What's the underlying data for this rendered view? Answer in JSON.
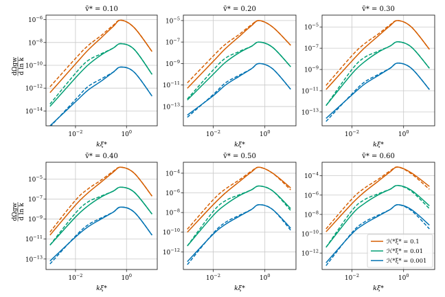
{
  "figure": {
    "ylabel_num": "dΩgw",
    "ylabel_den": "d ln k",
    "xlabel": "kξ*",
    "colors": {
      "0.1": "#d55e00",
      "0.01": "#009e73",
      "0.001": "#0072b2"
    },
    "line_styles": {
      "solid": "model",
      "dashed": "fit"
    },
    "legend": {
      "placement": "lower-right",
      "panel": 5,
      "entries": [
        {
          "label": "ℋ*ξ* = 0.1",
          "color": "#d55e00"
        },
        {
          "label": "ℋ*ξ* = 0.01",
          "color": "#009e73"
        },
        {
          "label": "ℋ*ξ* = 0.001",
          "color": "#0072b2"
        }
      ]
    }
  },
  "chart_data": [
    {
      "type": "line",
      "title": "v̄* = 0.10",
      "xscale": "log",
      "yscale": "log",
      "grid": true,
      "xlim": [
        0.0007,
        16
      ],
      "ylim": [
        5e-16,
        2.5e-06
      ],
      "xticks": [
        0.01,
        1.0
      ],
      "yticks": [
        1e-14,
        1e-12,
        1e-10,
        1e-08,
        1e-06
      ],
      "x": [
        0.001,
        0.01,
        0.03,
        0.1,
        0.3,
        0.6,
        2,
        10
      ],
      "series": [
        {
          "color": "#d55e00",
          "style": "solid",
          "values": [
            4e-13,
            1.3e-10,
            2e-09,
            2.5e-08,
            2.5e-07,
            8.9e-07,
            2e-07,
            1.6e-09
          ]
        },
        {
          "color": "#d55e00",
          "style": "dashed",
          "values": [
            1.3e-12,
            4e-10,
            5e-09,
            4e-08,
            3.2e-07,
            8.9e-07,
            2e-07,
            1.6e-09
          ]
        },
        {
          "color": "#009e73",
          "style": "solid",
          "values": [
            2.5e-14,
            7.9e-12,
            1e-10,
            7.9e-10,
            3.2e-09,
            7.9e-09,
            2.5e-09,
            1.6e-11
          ]
        },
        {
          "color": "#009e73",
          "style": "dashed",
          "values": [
            4e-14,
            2e-11,
            2.5e-10,
            1e-09,
            3.2e-09,
            7.9e-09,
            2.5e-09,
            1.6e-11
          ]
        },
        {
          "color": "#0072b2",
          "style": "solid",
          "values": [
            5e-16,
            6.3e-14,
            6.3e-13,
            4e-12,
            2.5e-11,
            7.1e-11,
            2.5e-11,
            2e-13
          ]
        },
        {
          "color": "#0072b2",
          "style": "dashed",
          "values": [
            4e-16,
            1e-13,
            1.3e-12,
            6.3e-12,
            2.5e-11,
            7.1e-11,
            2.5e-11,
            2e-13
          ]
        }
      ]
    },
    {
      "type": "line",
      "title": "v̄* = 0.20",
      "xscale": "log",
      "yscale": "log",
      "grid": true,
      "xlim": [
        0.0007,
        16
      ],
      "ylim": [
        1.6e-15,
        3.2e-05
      ],
      "xticks": [
        0.01,
        1.0
      ],
      "yticks": [
        1e-13,
        1e-11,
        1e-09,
        1e-07,
        1e-05
      ],
      "x": [
        0.001,
        0.01,
        0.03,
        0.1,
        0.3,
        0.6,
        2,
        10
      ],
      "series": [
        {
          "color": "#d55e00",
          "style": "solid",
          "values": [
            5e-12,
            1.6e-09,
            2.5e-08,
            3.2e-07,
            3.2e-06,
            1e-05,
            2.5e-06,
            5e-08
          ]
        },
        {
          "color": "#d55e00",
          "style": "dashed",
          "values": [
            1.6e-11,
            5e-09,
            6.3e-08,
            5e-07,
            4e-06,
            1e-05,
            2.5e-06,
            5e-08
          ]
        },
        {
          "color": "#009e73",
          "style": "solid",
          "values": [
            4e-13,
            1e-10,
            1.3e-09,
            1e-08,
            4e-08,
            1e-07,
            3.2e-08,
            5e-10
          ]
        },
        {
          "color": "#009e73",
          "style": "dashed",
          "values": [
            5e-13,
            2.5e-10,
            3.2e-09,
            1.3e-08,
            4e-08,
            1e-07,
            3.2e-08,
            5e-10
          ]
        },
        {
          "color": "#0072b2",
          "style": "solid",
          "values": [
            1.6e-14,
            1e-12,
            1e-11,
            6.3e-11,
            3.2e-10,
            1e-09,
            3.2e-10,
            4e-12
          ]
        },
        {
          "color": "#0072b2",
          "style": "dashed",
          "values": [
            1e-14,
            1.3e-12,
            1.6e-11,
            7.9e-11,
            3.2e-10,
            1e-09,
            3.2e-10,
            4e-12
          ]
        }
      ]
    },
    {
      "type": "line",
      "title": "v̄* = 0.30",
      "xscale": "log",
      "yscale": "log",
      "grid": true,
      "xlim": [
        0.0007,
        16
      ],
      "ylim": [
        5e-15,
        0.00013
      ],
      "xticks": [
        0.01,
        1.0
      ],
      "yticks": [
        1e-13,
        1e-11,
        1e-09,
        1e-07,
        1e-05
      ],
      "x": [
        0.001,
        0.01,
        0.03,
        0.1,
        0.3,
        0.6,
        2,
        10
      ],
      "series": [
        {
          "color": "#d55e00",
          "style": "solid",
          "values": [
            1.3e-11,
            6.3e-09,
            1e-07,
            1.3e-06,
            1.3e-05,
            4e-05,
            1e-05,
            7.9e-08
          ]
        },
        {
          "color": "#d55e00",
          "style": "dashed",
          "values": [
            3.2e-11,
            2e-08,
            2.5e-07,
            2e-06,
            1.6e-05,
            4e-05,
            1e-05,
            7.9e-08
          ]
        },
        {
          "color": "#009e73",
          "style": "solid",
          "values": [
            4e-13,
            4e-10,
            5e-09,
            4e-08,
            1.6e-07,
            4e-07,
            1.3e-07,
            1.3e-09
          ]
        },
        {
          "color": "#009e73",
          "style": "dashed",
          "values": [
            4e-13,
            1e-09,
            1.3e-08,
            5e-08,
            1.6e-07,
            4e-07,
            1.3e-07,
            1.3e-09
          ]
        },
        {
          "color": "#0072b2",
          "style": "solid",
          "values": [
            2.5e-14,
            4e-12,
            4e-11,
            2.5e-10,
            1.3e-09,
            4e-09,
            1.3e-09,
            1.3e-11
          ]
        },
        {
          "color": "#0072b2",
          "style": "dashed",
          "values": [
            1.3e-14,
            5e-12,
            6.3e-11,
            3.2e-10,
            1.3e-09,
            4e-09,
            1.3e-09,
            1.3e-11
          ]
        }
      ]
    },
    {
      "type": "line",
      "title": "v̄* = 0.40",
      "xscale": "log",
      "yscale": "log",
      "grid": true,
      "xlim": [
        0.0007,
        16
      ],
      "ylim": [
        8.9e-15,
        0.0005
      ],
      "xticks": [
        0.01,
        1.0
      ],
      "yticks": [
        1e-13,
        1e-11,
        1e-09,
        1e-07,
        1e-05
      ],
      "x": [
        0.001,
        0.01,
        0.03,
        0.1,
        0.3,
        0.6,
        2,
        10
      ],
      "series": [
        {
          "color": "#d55e00",
          "style": "solid",
          "values": [
            2.5e-11,
            2.5e-08,
            4e-07,
            5e-06,
            5e-05,
            0.00016,
            4e-05,
            2e-07
          ]
        },
        {
          "color": "#d55e00",
          "style": "dashed",
          "values": [
            5e-11,
            7.9e-08,
            1e-06,
            7.9e-06,
            6.3e-05,
            0.00016,
            4e-05,
            2e-07
          ]
        },
        {
          "color": "#009e73",
          "style": "solid",
          "values": [
            2.5e-12,
            1.6e-09,
            2e-08,
            1.6e-07,
            6.3e-07,
            1.6e-06,
            5e-07,
            3.2e-09
          ]
        },
        {
          "color": "#009e73",
          "style": "dashed",
          "values": [
            2.5e-12,
            4e-09,
            5e-08,
            2e-07,
            6.3e-07,
            1.6e-06,
            5e-07,
            3.2e-09
          ]
        },
        {
          "color": "#0072b2",
          "style": "solid",
          "values": [
            6.3e-14,
            1.6e-11,
            1.6e-10,
            1e-09,
            5e-09,
            1.6e-08,
            5e-09,
            2.5e-11
          ]
        },
        {
          "color": "#0072b2",
          "style": "dashed",
          "values": [
            3.2e-14,
            2e-11,
            2.5e-10,
            1.3e-09,
            5e-09,
            1.6e-08,
            5e-09,
            2.5e-11
          ]
        }
      ]
    },
    {
      "type": "line",
      "title": "v̄* = 0.50",
      "xscale": "log",
      "yscale": "log",
      "grid": true,
      "xlim": [
        0.0007,
        16
      ],
      "ylim": [
        1.6e-14,
        0.0013
      ],
      "xticks": [
        0.01,
        1.0
      ],
      "yticks": [
        1e-12,
        1e-10,
        1e-08,
        1e-06,
        0.0001
      ],
      "x": [
        0.001,
        0.01,
        0.03,
        0.1,
        0.3,
        0.6,
        2,
        10
      ],
      "series": [
        {
          "color": "#d55e00",
          "style": "solid",
          "values": [
            1e-10,
            6.3e-08,
            1e-06,
            1.3e-05,
            0.00013,
            0.0004,
            0.0001,
            3.2e-06
          ]
        },
        {
          "color": "#d55e00",
          "style": "dashed",
          "values": [
            2e-10,
            2e-07,
            2.5e-06,
            2e-05,
            0.00016,
            0.0004,
            0.0001,
            2e-06
          ]
        },
        {
          "color": "#009e73",
          "style": "solid",
          "values": [
            4e-12,
            5e-09,
            6.3e-08,
            5e-07,
            2e-06,
            5e-06,
            1.6e-06,
            2.5e-08
          ]
        },
        {
          "color": "#009e73",
          "style": "dashed",
          "values": [
            4e-12,
            1.3e-08,
            1.6e-07,
            6.3e-07,
            2e-06,
            5e-06,
            1.6e-06,
            1.6e-08
          ]
        },
        {
          "color": "#0072b2",
          "style": "solid",
          "values": [
            1e-13,
            6.3e-11,
            6.3e-10,
            4e-09,
            2e-08,
            6.3e-08,
            2e-08,
            2.5e-10
          ]
        },
        {
          "color": "#0072b2",
          "style": "dashed",
          "values": [
            5e-14,
            7.9e-11,
            1e-09,
            5e-09,
            2e-08,
            6.3e-08,
            2e-08,
            1.6e-10
          ]
        }
      ]
    },
    {
      "type": "line",
      "title": "v̄* = 0.60",
      "xscale": "log",
      "yscale": "log",
      "grid": true,
      "xlim": [
        0.0007,
        16
      ],
      "ylim": [
        2e-14,
        0.0025
      ],
      "xticks": [
        0.01,
        1.0
      ],
      "yticks": [
        1e-12,
        1e-10,
        1e-08,
        1e-06,
        0.0001
      ],
      "x": [
        0.001,
        0.01,
        0.03,
        0.1,
        0.3,
        0.6,
        2,
        10
      ],
      "series": [
        {
          "color": "#d55e00",
          "style": "solid",
          "values": [
            1.6e-10,
            1.3e-07,
            2e-06,
            2.5e-05,
            0.00025,
            0.00079,
            0.0002,
            7.9e-06
          ]
        },
        {
          "color": "#d55e00",
          "style": "dashed",
          "values": [
            3.2e-10,
            4e-07,
            5e-06,
            4e-05,
            0.00032,
            0.00079,
            0.00016,
            4e-06
          ]
        },
        {
          "color": "#009e73",
          "style": "solid",
          "values": [
            4e-12,
            1e-08,
            1.3e-07,
            1e-06,
            4e-06,
            1e-05,
            3.2e-06,
            7.9e-08
          ]
        },
        {
          "color": "#009e73",
          "style": "dashed",
          "values": [
            4e-12,
            2.5e-08,
            3.2e-07,
            1.3e-06,
            4e-06,
            1e-05,
            2.5e-06,
            4e-08
          ]
        },
        {
          "color": "#0072b2",
          "style": "solid",
          "values": [
            1e-13,
            1e-10,
            1e-09,
            6.3e-09,
            3.2e-08,
            1e-07,
            3.2e-08,
            7.9e-10
          ]
        },
        {
          "color": "#0072b2",
          "style": "dashed",
          "values": [
            5e-14,
            1.3e-10,
            1.6e-09,
            7.9e-09,
            3.2e-08,
            1e-07,
            2.5e-08,
            3.2e-10
          ]
        }
      ]
    }
  ]
}
